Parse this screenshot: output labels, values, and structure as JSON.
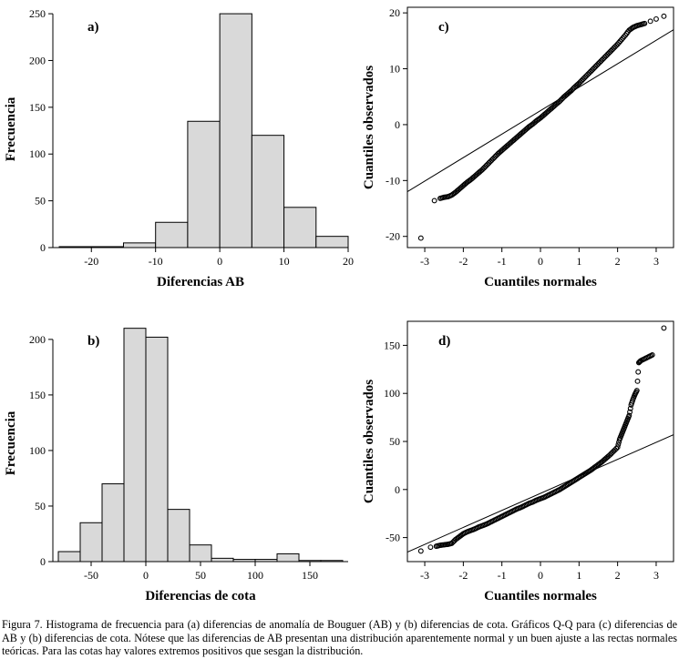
{
  "figure": {
    "caption": "Figura 7. Histograma de frecuencia para (a) diferencias de anomalía de Bouguer (AB) y (b) diferencias de cota. Gráficos Q-Q para (c) diferencias de AB y (b) diferencias de cota. Nótese que las diferencias de AB presentan una distribución aparentemente normal y un buen ajuste a las rectas normales teóricas. Para las cotas hay valores extremos positivos que sesgan la distribución."
  },
  "chart_data": [
    {
      "id": "a",
      "type": "bar",
      "panel_label": "a)",
      "xlabel": "Diferencias AB",
      "ylabel": "Frecuencia",
      "bin_start": -25,
      "bin_width": 5,
      "values": [
        1,
        1,
        5,
        27,
        135,
        250,
        120,
        43,
        12
      ],
      "xlim": [
        -26,
        20
      ],
      "ylim": [
        0,
        253
      ],
      "xticks": [
        -20,
        -10,
        0,
        10,
        20
      ],
      "yticks": [
        0,
        50,
        100,
        150,
        200,
        250
      ],
      "bar_fill": "#d9d9d9"
    },
    {
      "id": "b",
      "type": "bar",
      "panel_label": "b)",
      "xlabel": "Diferencias de cota",
      "ylabel": "Frecuencia",
      "bin_start": -80,
      "bin_width": 20,
      "values": [
        9,
        35,
        70,
        210,
        202,
        47,
        15,
        3,
        2,
        2,
        7,
        1,
        1
      ],
      "xlim": [
        -85,
        185
      ],
      "ylim": [
        0,
        213
      ],
      "xticks": [
        -50,
        0,
        50,
        100,
        150
      ],
      "yticks": [
        0,
        50,
        100,
        150,
        200
      ],
      "bar_fill": "#d9d9d9"
    },
    {
      "id": "c",
      "type": "qq",
      "panel_label": "c)",
      "xlabel": "Cuantiles normales",
      "ylabel": "Cuantiles observados",
      "xlim": [
        -3.45,
        3.45
      ],
      "ylim": [
        -22,
        21
      ],
      "xticks": [
        -3,
        -2,
        -1,
        0,
        1,
        2,
        3
      ],
      "yticks": [
        -20,
        -10,
        0,
        10,
        20
      ],
      "ref_line": {
        "slope": 4.2,
        "intercept": 2.5
      },
      "points": [
        [
          -3.1,
          -20.3
        ],
        [
          -2.75,
          -13.6
        ],
        [
          -2.6,
          -13.2
        ],
        [
          -2.5,
          -13
        ],
        [
          -2.4,
          -12.9
        ],
        [
          -2.3,
          -12.6
        ],
        [
          -2.2,
          -12.1
        ],
        [
          -2.1,
          -11.5
        ],
        [
          -2,
          -10.9
        ],
        [
          -1.9,
          -10.3
        ],
        [
          -1.8,
          -9.8
        ],
        [
          -1.7,
          -9.2
        ],
        [
          -1.6,
          -8.6
        ],
        [
          -1.5,
          -8
        ],
        [
          -1.4,
          -7.3
        ],
        [
          -1.3,
          -6.6
        ],
        [
          -1.2,
          -5.9
        ],
        [
          -1.1,
          -5.2
        ],
        [
          -1,
          -4.6
        ],
        [
          -0.9,
          -4
        ],
        [
          -0.8,
          -3.4
        ],
        [
          -0.7,
          -2.8
        ],
        [
          -0.6,
          -2.2
        ],
        [
          -0.5,
          -1.6
        ],
        [
          -0.4,
          -1
        ],
        [
          -0.3,
          -0.4
        ],
        [
          -0.2,
          0.1
        ],
        [
          -0.1,
          0.7
        ],
        [
          0,
          1.2
        ],
        [
          0.1,
          1.8
        ],
        [
          0.2,
          2.4
        ],
        [
          0.3,
          3
        ],
        [
          0.4,
          3.6
        ],
        [
          0.5,
          4.2
        ],
        [
          0.6,
          4.9
        ],
        [
          0.7,
          5.5
        ],
        [
          0.8,
          6.1
        ],
        [
          0.9,
          6.8
        ],
        [
          1,
          7.4
        ],
        [
          1.1,
          8.1
        ],
        [
          1.2,
          8.8
        ],
        [
          1.3,
          9.5
        ],
        [
          1.4,
          10.2
        ],
        [
          1.5,
          10.9
        ],
        [
          1.6,
          11.6
        ],
        [
          1.7,
          12.3
        ],
        [
          1.8,
          13
        ],
        [
          1.9,
          13.7
        ],
        [
          2,
          14.4
        ],
        [
          2.1,
          15.2
        ],
        [
          2.2,
          16
        ],
        [
          2.3,
          16.9
        ],
        [
          2.4,
          17.4
        ],
        [
          2.5,
          17.7
        ],
        [
          2.6,
          17.9
        ],
        [
          2.7,
          18.1
        ],
        [
          2.85,
          18.5
        ],
        [
          3,
          18.9
        ],
        [
          3.2,
          19.4
        ]
      ]
    },
    {
      "id": "d",
      "type": "qq",
      "panel_label": "d)",
      "xlabel": "Cuantiles normales",
      "ylabel": "Cuantiles observados",
      "xlim": [
        -3.45,
        3.45
      ],
      "ylim": [
        -75,
        175
      ],
      "xticks": [
        -3,
        -2,
        -1,
        0,
        1,
        2,
        3
      ],
      "yticks": [
        -50,
        0,
        50,
        100,
        150
      ],
      "ref_line": {
        "slope": 17.7,
        "intercept": -4
      },
      "points": [
        [
          -3.1,
          -64
        ],
        [
          -2.85,
          -60
        ],
        [
          -2.7,
          -59
        ],
        [
          -2.6,
          -58
        ],
        [
          -2.5,
          -57.5
        ],
        [
          -2.4,
          -57
        ],
        [
          -2.3,
          -56
        ],
        [
          -2.2,
          -52
        ],
        [
          -2.1,
          -49
        ],
        [
          -2,
          -46
        ],
        [
          -1.9,
          -44
        ],
        [
          -1.8,
          -42.5
        ],
        [
          -1.7,
          -41
        ],
        [
          -1.6,
          -39
        ],
        [
          -1.5,
          -37.5
        ],
        [
          -1.4,
          -36
        ],
        [
          -1.3,
          -34
        ],
        [
          -1.2,
          -32
        ],
        [
          -1.1,
          -30
        ],
        [
          -1,
          -28
        ],
        [
          -0.9,
          -26
        ],
        [
          -0.8,
          -24
        ],
        [
          -0.7,
          -22
        ],
        [
          -0.6,
          -20
        ],
        [
          -0.5,
          -18.5
        ],
        [
          -0.4,
          -16.5
        ],
        [
          -0.3,
          -14.5
        ],
        [
          -0.2,
          -13
        ],
        [
          -0.1,
          -11
        ],
        [
          0,
          -9.5
        ],
        [
          0.1,
          -8
        ],
        [
          0.2,
          -6
        ],
        [
          0.3,
          -4
        ],
        [
          0.4,
          -2
        ],
        [
          0.5,
          0
        ],
        [
          0.6,
          2.5
        ],
        [
          0.7,
          5
        ],
        [
          0.8,
          7.5
        ],
        [
          0.9,
          10
        ],
        [
          1,
          12.5
        ],
        [
          1.1,
          15
        ],
        [
          1.2,
          17.5
        ],
        [
          1.3,
          20
        ],
        [
          1.4,
          23
        ],
        [
          1.5,
          26
        ],
        [
          1.6,
          29
        ],
        [
          1.7,
          32.5
        ],
        [
          1.8,
          36
        ],
        [
          1.9,
          40
        ],
        [
          2,
          44
        ],
        [
          2.05,
          52
        ],
        [
          2.1,
          57
        ],
        [
          2.15,
          62
        ],
        [
          2.2,
          67
        ],
        [
          2.25,
          72
        ],
        [
          2.3,
          77
        ],
        [
          2.35,
          88
        ],
        [
          2.4,
          94
        ],
        [
          2.45,
          99
        ],
        [
          2.5,
          103
        ],
        [
          2.55,
          132
        ],
        [
          2.6,
          134
        ],
        [
          2.7,
          136
        ],
        [
          2.8,
          138
        ],
        [
          2.9,
          140
        ],
        [
          3.2,
          168
        ]
      ]
    }
  ]
}
